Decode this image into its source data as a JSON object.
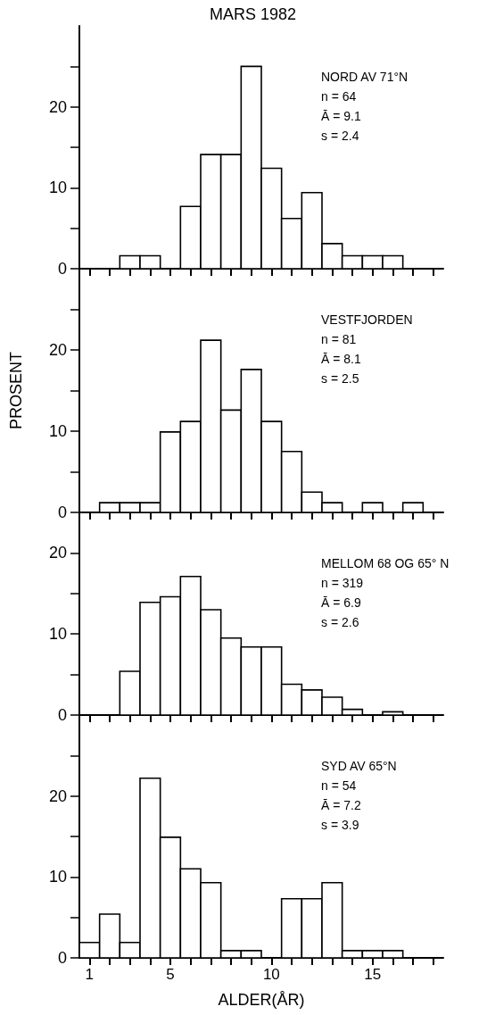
{
  "chart_data": [
    {
      "type": "histogram",
      "title": "MARS 1982",
      "bins": [
        0.5,
        1.5,
        2.5,
        3.5,
        4.5,
        5.5,
        6.5,
        7.5,
        8.5,
        9.5,
        10.5,
        11.5,
        12.5,
        13.5,
        14.5,
        15.5,
        16.5,
        17.5,
        18.5
      ],
      "values": [
        0,
        0,
        1.6,
        1.6,
        0,
        7.7,
        14.1,
        14.1,
        25.0,
        12.4,
        6.2,
        9.4,
        3.1,
        1.6,
        1.6,
        1.6,
        0,
        0
      ],
      "color": "#ffffff",
      "annotations": [
        "NORD AV 71°N",
        "n = 64",
        "Ā = 9.1",
        "s = 2.4"
      ],
      "xlim": [
        0.5,
        18.5
      ],
      "xticks": [
        1,
        {
          "value": 2,
          "label": null
        },
        {
          "value": 3,
          "label": null
        },
        {
          "value": 4,
          "label": null
        },
        5,
        {
          "value": 6,
          "label": null
        },
        {
          "value": 7,
          "label": null
        },
        {
          "value": 8,
          "label": null
        },
        {
          "value": 9,
          "label": null
        },
        10,
        {
          "value": 11,
          "label": null
        },
        {
          "value": 12,
          "label": null
        },
        {
          "value": 13,
          "label": null
        },
        {
          "value": 14,
          "label": null
        },
        15,
        {
          "value": 16,
          "label": null
        },
        {
          "value": 17,
          "label": null
        },
        {
          "value": 18,
          "label": null
        }
      ],
      "ylim": [
        0,
        30
      ],
      "yticks": [
        0,
        {
          "value": 5,
          "label": null
        },
        10,
        {
          "value": 15,
          "label": null
        },
        20,
        {
          "value": 25,
          "label": null
        }
      ],
      "tick_labels": "y"
    },
    {
      "type": "histogram",
      "ylabel": "PROSENT",
      "bins": [
        0.5,
        1.5,
        2.5,
        3.5,
        4.5,
        5.5,
        6.5,
        7.5,
        8.5,
        9.5,
        10.5,
        11.5,
        12.5,
        13.5,
        14.5,
        15.5,
        16.5,
        17.5,
        18.5
      ],
      "values": [
        0,
        1.2,
        1.2,
        1.2,
        9.9,
        11.2,
        21.2,
        12.6,
        17.6,
        11.2,
        7.5,
        2.5,
        1.2,
        0,
        1.2,
        0,
        1.2,
        0
      ],
      "color": "#ffffff",
      "annotations": [
        "VESTFJORDEN",
        "n = 81",
        "Ā = 8.1",
        "s = 2.5"
      ],
      "xlim": [
        0.5,
        18.5
      ],
      "xticks": [
        1,
        {
          "value": 2,
          "label": null
        },
        {
          "value": 3,
          "label": null
        },
        {
          "value": 4,
          "label": null
        },
        5,
        {
          "value": 6,
          "label": null
        },
        {
          "value": 7,
          "label": null
        },
        {
          "value": 8,
          "label": null
        },
        {
          "value": 9,
          "label": null
        },
        10,
        {
          "value": 11,
          "label": null
        },
        {
          "value": 12,
          "label": null
        },
        {
          "value": 13,
          "label": null
        },
        {
          "value": 14,
          "label": null
        },
        15,
        {
          "value": 16,
          "label": null
        },
        {
          "value": 17,
          "label": null
        },
        {
          "value": 18,
          "label": null
        }
      ],
      "ylim": [
        0,
        30
      ],
      "yticks": [
        0,
        {
          "value": 5,
          "label": null
        },
        10,
        {
          "value": 15,
          "label": null
        },
        20,
        {
          "value": 25,
          "label": null
        }
      ],
      "tick_labels": "y"
    },
    {
      "type": "histogram",
      "bins": [
        0.5,
        1.5,
        2.5,
        3.5,
        4.5,
        5.5,
        6.5,
        7.5,
        8.5,
        9.5,
        10.5,
        11.5,
        12.5,
        13.5,
        14.5,
        15.5,
        16.5,
        17.5,
        18.5
      ],
      "values": [
        0,
        0,
        5.4,
        13.9,
        14.6,
        17.1,
        13.0,
        9.5,
        8.4,
        8.4,
        3.8,
        3.1,
        2.2,
        0.7,
        0,
        0.4,
        0,
        0
      ],
      "color": "#ffffff",
      "annotations": [
        "MELLOM 68 OG 65° N",
        "n = 319",
        "Ā = 6.9",
        "s = 2.6"
      ],
      "xlim": [
        0.5,
        18.5
      ],
      "xticks": [
        1,
        {
          "value": 2,
          "label": null
        },
        {
          "value": 3,
          "label": null
        },
        {
          "value": 4,
          "label": null
        },
        5,
        {
          "value": 6,
          "label": null
        },
        {
          "value": 7,
          "label": null
        },
        {
          "value": 8,
          "label": null
        },
        {
          "value": 9,
          "label": null
        },
        10,
        {
          "value": 11,
          "label": null
        },
        {
          "value": 12,
          "label": null
        },
        {
          "value": 13,
          "label": null
        },
        {
          "value": 14,
          "label": null
        },
        15,
        {
          "value": 16,
          "label": null
        },
        {
          "value": 17,
          "label": null
        },
        {
          "value": 18,
          "label": null
        }
      ],
      "ylim": [
        0,
        25
      ],
      "yticks": [
        0,
        {
          "value": 5,
          "label": null
        },
        10,
        {
          "value": 15,
          "label": null
        },
        20
      ],
      "tick_labels": "y"
    },
    {
      "type": "histogram",
      "xlabel": "ALDER(ÅR)",
      "bins": [
        0.5,
        1.5,
        2.5,
        3.5,
        4.5,
        5.5,
        6.5,
        7.5,
        8.5,
        9.5,
        10.5,
        11.5,
        12.5,
        13.5,
        14.5,
        15.5,
        16.5,
        17.5,
        18.5
      ],
      "values": [
        1.9,
        5.4,
        1.9,
        22.2,
        14.9,
        11.0,
        9.3,
        0.9,
        0.9,
        0,
        7.3,
        7.3,
        9.3,
        0.9,
        0.9,
        0.9,
        0,
        0
      ],
      "color": "#ffffff",
      "annotations": [
        "SYD AV 65°N",
        "n = 54",
        "Ā = 7.2",
        "s = 3.9"
      ],
      "xlim": [
        0.5,
        18.5
      ],
      "xticks": [
        1,
        {
          "value": 2,
          "label": null
        },
        {
          "value": 3,
          "label": null
        },
        {
          "value": 4,
          "label": null
        },
        5,
        {
          "value": 6,
          "label": null
        },
        {
          "value": 7,
          "label": null
        },
        {
          "value": 8,
          "label": null
        },
        {
          "value": 9,
          "label": null
        },
        10,
        {
          "value": 11,
          "label": null
        },
        {
          "value": 12,
          "label": null
        },
        {
          "value": 13,
          "label": null
        },
        {
          "value": 14,
          "label": null
        },
        15,
        {
          "value": 16,
          "label": null
        },
        {
          "value": 17,
          "label": null
        },
        {
          "value": 18,
          "label": null
        }
      ],
      "ylim": [
        0,
        30
      ],
      "yticks": [
        0,
        {
          "value": 5,
          "label": null
        },
        10,
        {
          "value": 15,
          "label": null
        },
        20,
        {
          "value": 25,
          "label": null
        }
      ]
    }
  ]
}
